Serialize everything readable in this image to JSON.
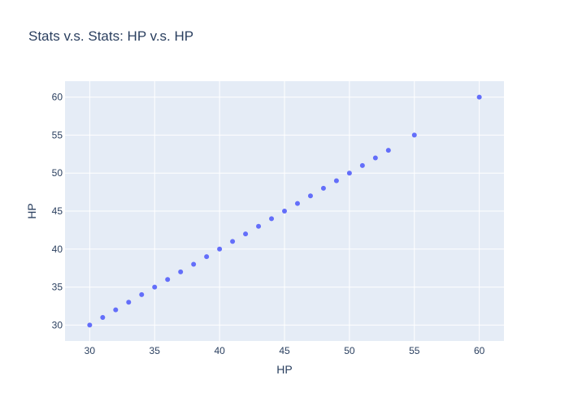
{
  "chart_data": {
    "type": "scatter",
    "title": "Stats v.s. Stats: HP v.s. HP",
    "xlabel": "HP",
    "ylabel": "HP",
    "xlim": [
      28.1,
      61.9
    ],
    "ylim": [
      27.9,
      62.1
    ],
    "x_ticks": [
      30,
      35,
      40,
      45,
      50,
      55,
      60
    ],
    "y_ticks": [
      30,
      35,
      40,
      45,
      50,
      55,
      60
    ],
    "grid": true,
    "colors": {
      "marker": "#636efa",
      "plot_bg": "#e5ecf6",
      "grid": "#ffffff",
      "text": "#2a3f5f"
    },
    "points": [
      {
        "x": 30,
        "y": 30
      },
      {
        "x": 31,
        "y": 31
      },
      {
        "x": 32,
        "y": 32
      },
      {
        "x": 33,
        "y": 33
      },
      {
        "x": 34,
        "y": 34
      },
      {
        "x": 35,
        "y": 35
      },
      {
        "x": 36,
        "y": 36
      },
      {
        "x": 37,
        "y": 37
      },
      {
        "x": 38,
        "y": 38
      },
      {
        "x": 39,
        "y": 39
      },
      {
        "x": 40,
        "y": 40
      },
      {
        "x": 41,
        "y": 41
      },
      {
        "x": 42,
        "y": 42
      },
      {
        "x": 43,
        "y": 43
      },
      {
        "x": 44,
        "y": 44
      },
      {
        "x": 45,
        "y": 45
      },
      {
        "x": 46,
        "y": 46
      },
      {
        "x": 47,
        "y": 47
      },
      {
        "x": 48,
        "y": 48
      },
      {
        "x": 49,
        "y": 49
      },
      {
        "x": 50,
        "y": 50
      },
      {
        "x": 51,
        "y": 51
      },
      {
        "x": 52,
        "y": 52
      },
      {
        "x": 53,
        "y": 53
      },
      {
        "x": 55,
        "y": 55
      },
      {
        "x": 60,
        "y": 60
      }
    ]
  }
}
